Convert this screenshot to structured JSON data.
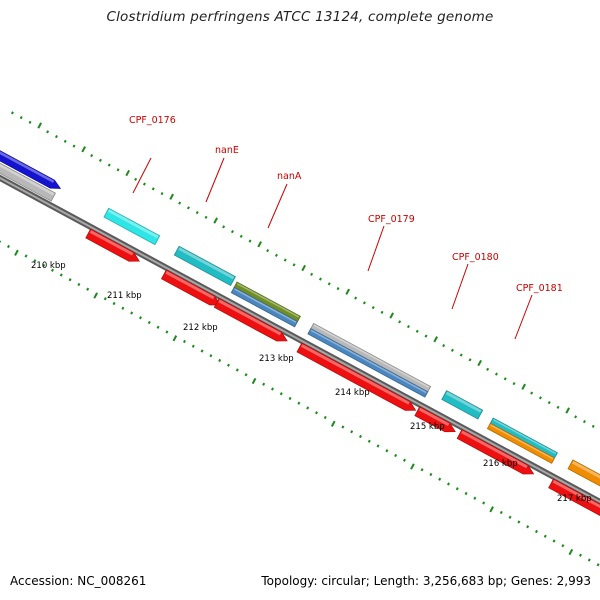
{
  "title": "Clostridium perfringens ATCC 13124, complete genome",
  "footer": {
    "accession": "Accession: NC_008261",
    "topology": "Topology: circular; Length: 3,256,683 bp; Genes: 2,993"
  },
  "gene_labels": [
    "CPF_0176",
    "nanE",
    "nanA",
    "CPF_0179",
    "CPF_0180",
    "CPF_0181"
  ],
  "ticks": [
    "210 kbp",
    "211 kbp",
    "212 kbp",
    "213 kbp",
    "214 kbp",
    "215 kbp",
    "216 kbp",
    "217 kbp"
  ],
  "colors": {
    "backbone": "#7a7a7a",
    "tick": "#1a8a1a",
    "label": "#cc0000",
    "cyan": "#2ee6e6",
    "teal": "#22bcc4",
    "olive": "#6f8f22",
    "steel": "#4a86c0",
    "gray": "#b8b8b8",
    "orange": "#f08c00",
    "blue": "#1414d0",
    "red": "#ee1010"
  }
}
